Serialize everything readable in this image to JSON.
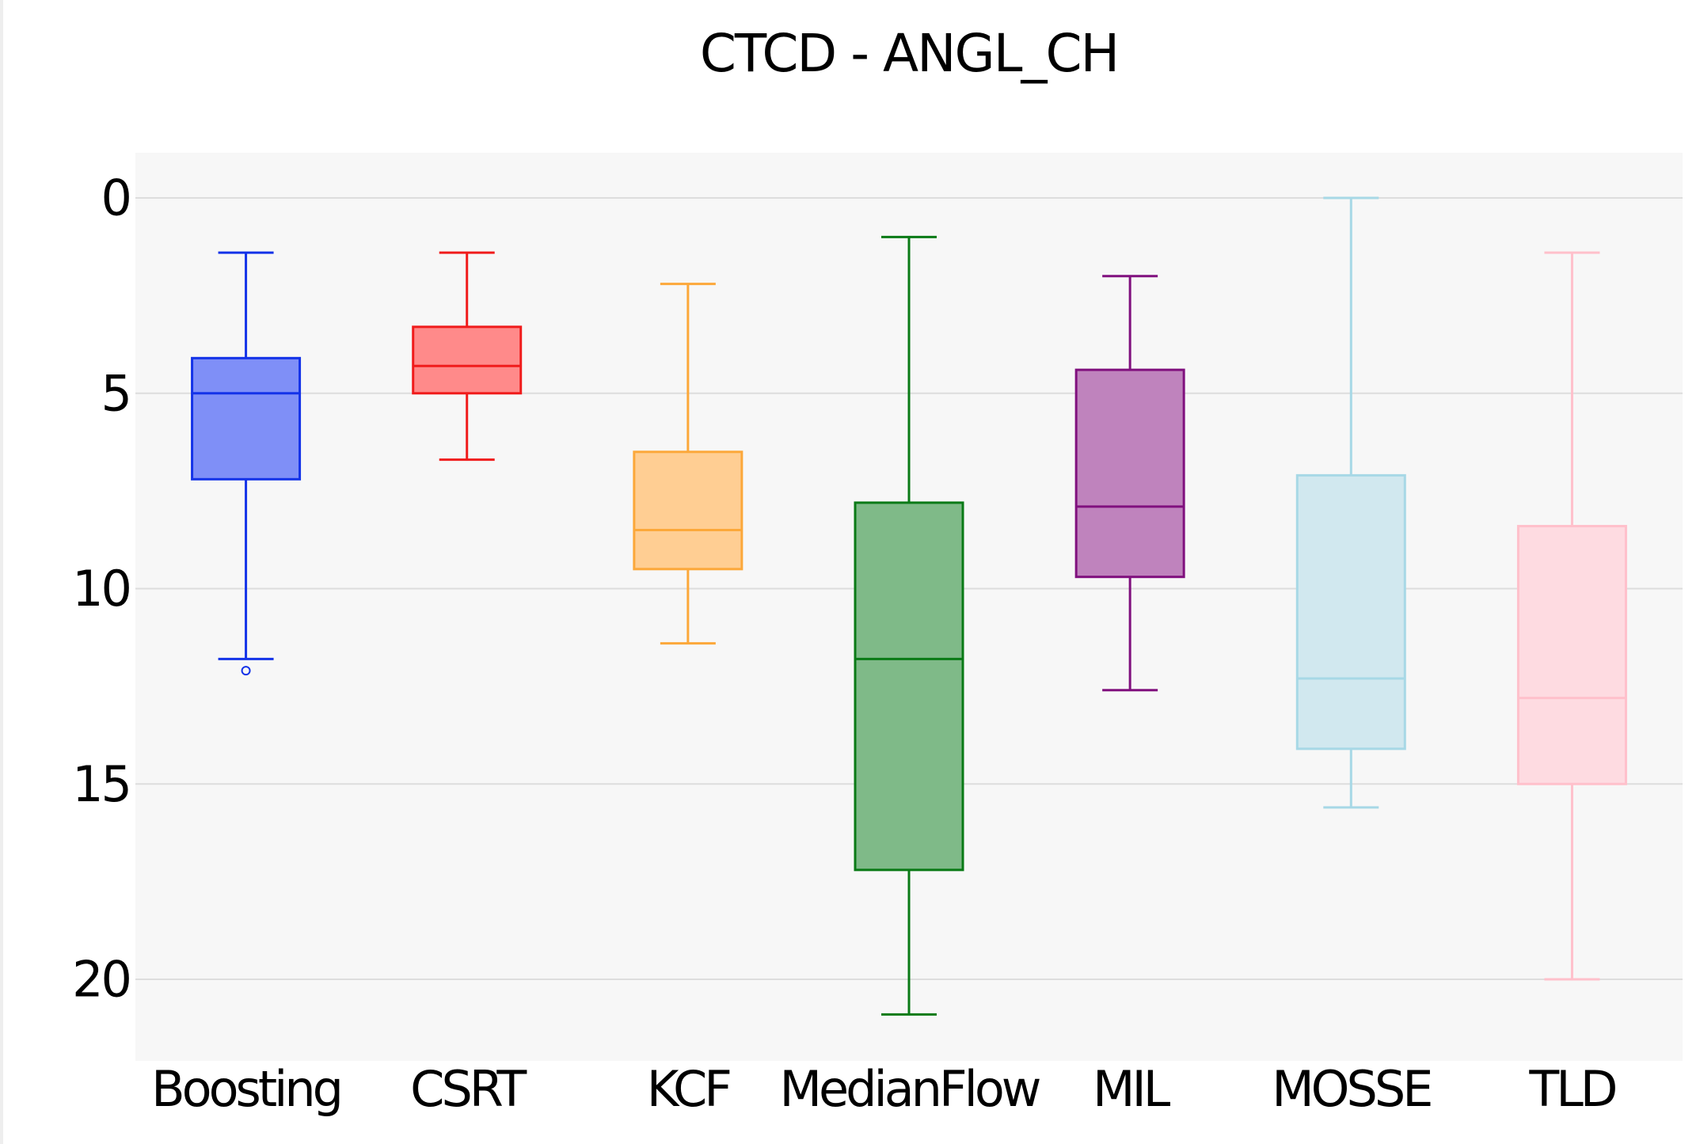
{
  "chart_data": {
    "type": "box",
    "title": "CTCD - ANGL_CH",
    "xlabel": "",
    "ylabel": "",
    "y_reversed": true,
    "ylim": [
      0,
      22.2
    ],
    "y_ticks": [
      0,
      5,
      10,
      15,
      20
    ],
    "y_tick_labels": [
      "0",
      "5",
      "10",
      "15",
      "20"
    ],
    "grid": true,
    "legend": "none",
    "categories": [
      "Boosting",
      "CSRT",
      "KCF",
      "MedianFlow",
      "MIL",
      "MOSSE",
      "TLD"
    ],
    "series": [
      {
        "category": "Boosting",
        "whisker_low": 1.4,
        "q1": 4.1,
        "median": 5.0,
        "q3": 7.2,
        "whisker_high": 11.8,
        "outliers": [
          12.1
        ],
        "line_color": "#1433e8",
        "fill_color": "#7f8ff7"
      },
      {
        "category": "CSRT",
        "whisker_low": 1.4,
        "q1": 3.3,
        "median": 4.3,
        "q3": 5.0,
        "whisker_high": 6.7,
        "outliers": [],
        "line_color": "#f01c1c",
        "fill_color": "#ff8a8a"
      },
      {
        "category": "KCF",
        "whisker_low": 2.2,
        "q1": 6.5,
        "median": 8.5,
        "q3": 9.5,
        "whisker_high": 11.4,
        "outliers": [],
        "line_color": "#fca83a",
        "fill_color": "#ffce93"
      },
      {
        "category": "MedianFlow",
        "whisker_low": 1.0,
        "q1": 7.8,
        "median": 11.8,
        "q3": 17.2,
        "whisker_high": 20.9,
        "outliers": [],
        "line_color": "#0a7a16",
        "fill_color": "#7fba88"
      },
      {
        "category": "MIL",
        "whisker_low": 2.0,
        "q1": 4.4,
        "median": 7.9,
        "q3": 9.7,
        "whisker_high": 12.6,
        "outliers": [],
        "line_color": "#80107e",
        "fill_color": "#bf83bd"
      },
      {
        "category": "MOSSE",
        "whisker_low": 0.0,
        "q1": 7.1,
        "median": 12.3,
        "q3": 14.1,
        "whisker_high": 15.6,
        "outliers": [],
        "line_color": "#a7d8e6",
        "fill_color": "#d1e8ef"
      },
      {
        "category": "TLD",
        "whisker_low": 1.4,
        "q1": 8.4,
        "median": 12.8,
        "q3": 15.0,
        "whisker_high": 20.0,
        "outliers": [],
        "line_color": "#ffc0cb",
        "fill_color": "#fedbe1"
      }
    ],
    "colors": {
      "plot_background": "#f7f7f7",
      "grid": "#dddddd",
      "text": "#000000"
    }
  }
}
